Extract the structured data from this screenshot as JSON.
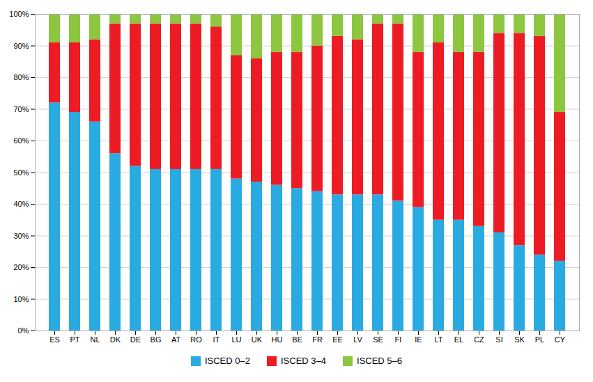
{
  "chart_data": {
    "type": "bar",
    "stacked": true,
    "categories": [
      "ES",
      "PT",
      "NL",
      "DK",
      "DE",
      "BG",
      "AT",
      "RO",
      "IT",
      "LU",
      "UK",
      "HU",
      "BE",
      "FR",
      "EE",
      "LV",
      "SE",
      "FI",
      "IE",
      "LT",
      "EL",
      "CZ",
      "SI",
      "SK",
      "PL",
      "CY"
    ],
    "series": [
      {
        "name": "ISCED 0–2",
        "color": "#29ABE2",
        "values": [
          72,
          69,
          66,
          56,
          52,
          51,
          51,
          51,
          51,
          48,
          47,
          46,
          45,
          44,
          43,
          43,
          43,
          41,
          39,
          35,
          35,
          33,
          31,
          27,
          24,
          22
        ]
      },
      {
        "name": "ISCED 3–4",
        "color": "#ED1C24",
        "values": [
          19,
          22,
          26,
          41,
          45,
          46,
          46,
          46,
          45,
          39,
          39,
          42,
          43,
          46,
          50,
          49,
          54,
          56,
          49,
          56,
          53,
          55,
          63,
          67,
          69,
          47
        ]
      },
      {
        "name": "ISCED 5–6",
        "color": "#8DC63F",
        "values": [
          9,
          9,
          8,
          3,
          3,
          3,
          3,
          3,
          4,
          13,
          14,
          12,
          12,
          10,
          7,
          8,
          3,
          3,
          12,
          9,
          12,
          12,
          6,
          6,
          7,
          31
        ]
      }
    ],
    "ylim": [
      0,
      100
    ],
    "yticks": [
      {
        "value": 0,
        "label": "0%"
      },
      {
        "value": 10,
        "label": "10%"
      },
      {
        "value": 20,
        "label": "20%"
      },
      {
        "value": 30,
        "label": "30%"
      },
      {
        "value": 40,
        "label": "40%"
      },
      {
        "value": 50,
        "label": "50%"
      },
      {
        "value": 60,
        "label": "60%"
      },
      {
        "value": 70,
        "label": "70%"
      },
      {
        "value": 80,
        "label": "80%"
      },
      {
        "value": 90,
        "label": "90%"
      },
      {
        "value": 100,
        "label": "100%"
      }
    ],
    "grid": true,
    "legend": "bottom"
  }
}
